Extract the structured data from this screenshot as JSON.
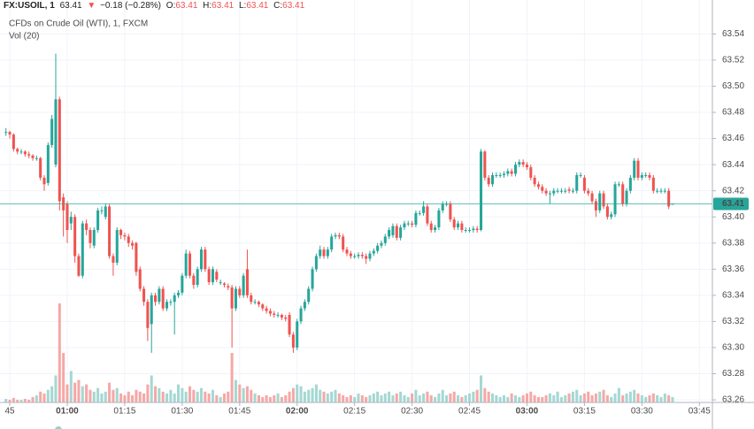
{
  "header": {
    "symbol": "FX:USOIL, 1",
    "price": "63.41",
    "arrow": "▼",
    "change": "−0.18 (−0.28%)",
    "ohlc": [
      {
        "key": "O:",
        "value": "63.41"
      },
      {
        "key": "H:",
        "value": "63.41"
      },
      {
        "key": "L:",
        "value": "63.41"
      },
      {
        "key": "C:",
        "value": "63.41"
      }
    ]
  },
  "chart_data": {
    "type": "candlestick",
    "title": "CFDs on Crude Oil (WTI), 1, FXCM",
    "volume_label": "Vol (20)",
    "up_color": "#26a69a",
    "down_color": "#ef5350",
    "volume_up_color": "#a4d8d2",
    "volume_down_color": "#f5a8a6",
    "grid": true,
    "price_line": 63.41,
    "xlim": [
      42.45,
      228.4
    ],
    "ylim": [
      63.258,
      63.566
    ],
    "xticks": [
      {
        "value": 45,
        "label": "45"
      },
      {
        "value": 60,
        "label": "01:00"
      },
      {
        "value": 75,
        "label": "01:15"
      },
      {
        "value": 90,
        "label": "01:30"
      },
      {
        "value": 105,
        "label": "01:45"
      },
      {
        "value": 120,
        "label": "02:00"
      },
      {
        "value": 135,
        "label": "02:15"
      },
      {
        "value": 150,
        "label": "02:30"
      },
      {
        "value": 165,
        "label": "02:45"
      },
      {
        "value": 180,
        "label": "03:00"
      },
      {
        "value": 195,
        "label": "03:15"
      },
      {
        "value": 210,
        "label": "03:30"
      },
      {
        "value": 225,
        "label": "03:45"
      }
    ],
    "yticks": [
      63.26,
      63.28,
      {
        "value": 63.3,
        "label": "63.30"
      },
      63.32,
      63.34,
      63.36,
      63.38,
      {
        "value": 63.4,
        "label": "63.40"
      },
      63.42,
      63.44,
      63.46,
      63.48,
      {
        "value": 63.5,
        "label": "63.50"
      },
      63.52,
      63.54
    ],
    "x": [
      44,
      45,
      46,
      47,
      48,
      49,
      50,
      51,
      52,
      53,
      54,
      55,
      56,
      57,
      58,
      59,
      60,
      61,
      62,
      63,
      64,
      65,
      66,
      67,
      68,
      69,
      70,
      71,
      72,
      73,
      74,
      75,
      76,
      77,
      78,
      79,
      80,
      81,
      82,
      83,
      84,
      85,
      86,
      87,
      88,
      89,
      90,
      91,
      92,
      93,
      94,
      95,
      96,
      97,
      98,
      99,
      100,
      101,
      102,
      103,
      104,
      105,
      106,
      107,
      108,
      109,
      110,
      111,
      112,
      113,
      114,
      115,
      116,
      117,
      118,
      119,
      120,
      121,
      122,
      123,
      124,
      125,
      126,
      127,
      128,
      129,
      130,
      131,
      132,
      133,
      134,
      135,
      136,
      137,
      138,
      139,
      140,
      141,
      142,
      143,
      144,
      145,
      146,
      147,
      148,
      149,
      150,
      151,
      152,
      153,
      154,
      155,
      156,
      157,
      158,
      159,
      160,
      161,
      162,
      163,
      164,
      165,
      166,
      167,
      168,
      169,
      170,
      171,
      172,
      173,
      174,
      175,
      176,
      177,
      178,
      179,
      180,
      181,
      182,
      183,
      184,
      185,
      186,
      187,
      188,
      189,
      190,
      191,
      192,
      193,
      194,
      195,
      196,
      197,
      198,
      199,
      200,
      201,
      202,
      203,
      204,
      205,
      206,
      207,
      208,
      209,
      210,
      211,
      212,
      213,
      214,
      215,
      216,
      217,
      218
    ],
    "open": [
      63.465,
      63.465,
      63.463,
      63.452,
      63.45,
      63.45,
      63.448,
      63.447,
      63.445,
      63.445,
      63.43,
      63.426,
      63.455,
      63.44,
      63.49,
      63.415,
      63.41,
      63.395,
      63.4,
      63.37,
      63.355,
      63.395,
      63.39,
      63.378,
      63.39,
      63.405,
      63.4,
      63.408,
      63.37,
      63.365,
      63.39,
      63.386,
      63.385,
      63.38,
      63.38,
      63.36,
      63.345,
      63.335,
      63.318,
      63.34,
      63.335,
      63.345,
      63.33,
      63.335,
      63.335,
      63.34,
      63.342,
      63.355,
      63.372,
      63.355,
      63.348,
      63.36,
      63.375,
      63.36,
      63.35,
      63.358,
      63.35,
      63.349,
      63.347,
      63.346,
      63.33,
      63.345,
      63.34,
      63.36,
      63.34,
      63.335,
      63.335,
      63.333,
      63.33,
      63.328,
      63.326,
      63.325,
      63.325,
      63.323,
      63.325,
      63.31,
      63.3,
      63.32,
      63.33,
      63.335,
      63.345,
      63.36,
      63.37,
      63.375,
      63.37,
      63.375,
      63.385,
      63.386,
      63.385,
      63.375,
      63.372,
      63.37,
      63.37,
      63.371,
      63.37,
      63.368,
      63.372,
      63.374,
      63.378,
      63.38,
      63.385,
      63.386,
      63.393,
      63.384,
      63.392,
      63.395,
      63.395,
      63.394,
      63.403,
      63.403,
      63.408,
      63.395,
      63.39,
      63.392,
      63.405,
      63.41,
      63.41,
      63.398,
      63.392,
      63.395,
      63.39,
      63.39,
      63.39,
      63.391,
      63.39,
      63.45,
      63.43,
      63.425,
      63.432,
      63.432,
      63.432,
      63.433,
      63.435,
      63.433,
      63.44,
      63.442,
      63.44,
      63.438,
      63.43,
      63.425,
      63.423,
      63.42,
      63.418,
      63.418,
      63.42,
      63.42,
      63.42,
      63.421,
      63.42,
      63.42,
      63.432,
      63.43,
      63.42,
      63.418,
      63.412,
      63.405,
      63.418,
      63.408,
      63.4,
      63.402,
      63.425,
      63.425,
      63.41,
      63.42,
      63.43,
      63.443,
      63.43,
      63.432,
      63.432,
      63.43,
      63.42,
      63.42,
      63.42,
      63.42,
      63.41
    ],
    "high": [
      63.468,
      63.466,
      63.464,
      63.453,
      63.452,
      63.451,
      63.45,
      63.448,
      63.447,
      63.446,
      63.432,
      63.457,
      63.478,
      63.525,
      63.492,
      63.418,
      63.412,
      63.404,
      63.402,
      63.372,
      63.397,
      63.398,
      63.392,
      63.392,
      63.407,
      63.408,
      63.41,
      63.41,
      63.372,
      63.392,
      63.391,
      63.388,
      63.387,
      63.382,
      63.381,
      63.362,
      63.347,
      63.337,
      63.342,
      63.342,
      63.347,
      63.347,
      63.337,
      63.337,
      63.342,
      63.344,
      63.357,
      63.375,
      63.374,
      63.357,
      63.362,
      63.377,
      63.377,
      63.362,
      63.362,
      63.36,
      63.352,
      63.35,
      63.349,
      63.348,
      63.347,
      63.347,
      63.357,
      63.375,
      63.342,
      63.337,
      63.336,
      63.334,
      63.332,
      63.33,
      63.328,
      63.327,
      63.326,
      63.325,
      63.327,
      63.312,
      63.322,
      63.332,
      63.337,
      63.347,
      63.362,
      63.372,
      63.378,
      63.377,
      63.377,
      63.387,
      63.388,
      63.388,
      63.387,
      63.377,
      63.374,
      63.372,
      63.373,
      63.373,
      63.372,
      63.374,
      63.376,
      63.38,
      63.382,
      63.387,
      63.392,
      63.395,
      63.395,
      63.394,
      63.397,
      63.397,
      63.397,
      63.405,
      63.405,
      63.412,
      63.41,
      63.397,
      63.394,
      63.407,
      63.412,
      63.412,
      63.412,
      63.4,
      63.397,
      63.397,
      63.392,
      63.392,
      63.393,
      63.393,
      63.452,
      63.451,
      63.432,
      63.434,
      63.434,
      63.434,
      63.435,
      63.437,
      63.437,
      63.442,
      63.444,
      63.444,
      63.442,
      63.44,
      63.432,
      63.427,
      63.425,
      63.422,
      63.42,
      63.422,
      63.422,
      63.422,
      63.422,
      63.423,
      63.422,
      63.434,
      63.434,
      63.432,
      63.422,
      63.42,
      63.414,
      63.42,
      63.42,
      63.41,
      63.404,
      63.427,
      63.427,
      63.427,
      63.422,
      63.432,
      63.445,
      63.445,
      63.434,
      63.434,
      63.434,
      63.432,
      63.422,
      63.422,
      63.422,
      63.422,
      63.41
    ],
    "low": [
      63.462,
      63.46,
      63.45,
      63.448,
      63.448,
      63.446,
      63.445,
      63.443,
      63.443,
      63.428,
      63.42,
      63.424,
      63.453,
      63.438,
      63.405,
      63.385,
      63.38,
      63.39,
      63.365,
      63.354,
      63.353,
      63.386,
      63.376,
      63.376,
      63.388,
      63.402,
      63.398,
      63.368,
      63.355,
      63.363,
      63.383,
      63.382,
      63.377,
      63.375,
      63.355,
      63.343,
      63.332,
      63.305,
      63.296,
      63.332,
      63.333,
      63.328,
      63.328,
      63.332,
      63.31,
      63.338,
      63.34,
      63.353,
      63.353,
      63.345,
      63.346,
      63.358,
      63.358,
      63.348,
      63.348,
      63.35,
      63.348,
      63.346,
      63.344,
      63.3,
      63.328,
      63.338,
      63.338,
      63.338,
      63.333,
      63.333,
      63.331,
      63.328,
      63.326,
      63.324,
      63.323,
      63.323,
      63.321,
      63.32,
      63.308,
      63.296,
      63.298,
      63.318,
      63.328,
      63.333,
      63.343,
      63.358,
      63.368,
      63.368,
      63.368,
      63.373,
      63.383,
      63.383,
      63.373,
      63.37,
      63.368,
      63.368,
      63.368,
      63.368,
      63.364,
      63.366,
      63.37,
      63.372,
      63.376,
      63.378,
      63.383,
      63.384,
      63.382,
      63.382,
      63.39,
      63.393,
      63.392,
      63.392,
      63.401,
      63.401,
      63.393,
      63.388,
      63.388,
      63.39,
      63.403,
      63.408,
      63.396,
      63.39,
      63.39,
      63.388,
      63.388,
      63.388,
      63.388,
      63.388,
      63.389,
      63.428,
      63.423,
      63.423,
      63.43,
      63.43,
      63.43,
      63.431,
      63.431,
      63.431,
      63.438,
      63.438,
      63.436,
      63.428,
      63.423,
      63.421,
      63.418,
      63.416,
      63.41,
      63.416,
      63.418,
      63.418,
      63.418,
      63.418,
      63.418,
      63.418,
      63.43,
      63.418,
      63.416,
      63.41,
      63.4,
      63.403,
      63.406,
      63.398,
      63.398,
      63.4,
      63.423,
      63.408,
      63.408,
      63.418,
      63.428,
      63.428,
      63.428,
      63.43,
      63.428,
      63.418,
      63.418,
      63.418,
      63.418,
      63.406,
      63.41
    ],
    "close": [
      63.465,
      63.463,
      63.452,
      63.45,
      63.45,
      63.448,
      63.447,
      63.445,
      63.445,
      63.43,
      63.425,
      63.455,
      63.475,
      63.49,
      63.412,
      63.405,
      63.39,
      63.4,
      63.37,
      63.355,
      63.395,
      63.39,
      63.38,
      63.39,
      63.405,
      63.405,
      63.408,
      63.37,
      63.365,
      63.39,
      63.386,
      63.385,
      63.38,
      63.378,
      63.358,
      63.345,
      63.335,
      63.315,
      63.34,
      63.335,
      63.345,
      63.33,
      63.335,
      63.335,
      63.34,
      63.342,
      63.355,
      63.372,
      63.355,
      63.348,
      63.36,
      63.375,
      63.36,
      63.35,
      63.36,
      63.352,
      63.35,
      63.348,
      63.346,
      63.33,
      63.345,
      63.34,
      63.355,
      63.34,
      63.335,
      63.335,
      63.333,
      63.33,
      63.328,
      63.326,
      63.325,
      63.325,
      63.323,
      63.322,
      63.31,
      63.3,
      63.32,
      63.33,
      63.335,
      63.345,
      63.36,
      63.37,
      63.375,
      63.37,
      63.375,
      63.385,
      63.386,
      63.385,
      63.375,
      63.372,
      63.37,
      63.37,
      63.371,
      63.37,
      63.368,
      63.372,
      63.374,
      63.378,
      63.38,
      63.385,
      63.39,
      63.393,
      63.384,
      63.392,
      63.395,
      63.395,
      63.394,
      63.403,
      63.403,
      63.408,
      63.395,
      63.39,
      63.392,
      63.405,
      63.41,
      63.41,
      63.398,
      63.392,
      63.395,
      63.39,
      63.39,
      63.39,
      63.391,
      63.39,
      63.45,
      63.43,
      63.425,
      63.432,
      63.432,
      63.432,
      63.433,
      63.435,
      63.433,
      63.44,
      63.442,
      63.44,
      63.438,
      63.43,
      63.425,
      63.423,
      63.42,
      63.418,
      63.418,
      63.42,
      63.42,
      63.42,
      63.42,
      63.42,
      63.42,
      63.432,
      63.432,
      63.42,
      63.418,
      63.412,
      63.405,
      63.418,
      63.408,
      63.4,
      63.402,
      63.425,
      63.425,
      63.41,
      63.42,
      63.43,
      63.443,
      63.43,
      63.432,
      63.432,
      63.43,
      63.42,
      63.42,
      63.42,
      63.42,
      63.408,
      63.41
    ],
    "volume": [
      4,
      3,
      5,
      3,
      3,
      4,
      3,
      6,
      8,
      12,
      10,
      14,
      18,
      30,
      110,
      55,
      20,
      35,
      22,
      25,
      18,
      20,
      14,
      12,
      16,
      10,
      12,
      22,
      14,
      16,
      10,
      8,
      12,
      8,
      14,
      12,
      10,
      20,
      30,
      18,
      16,
      12,
      10,
      14,
      10,
      20,
      16,
      12,
      18,
      14,
      12,
      16,
      12,
      10,
      14,
      8,
      6,
      10,
      12,
      55,
      25,
      20,
      16,
      18,
      14,
      10,
      8,
      6,
      8,
      6,
      8,
      10,
      6,
      8,
      12,
      16,
      20,
      18,
      12,
      14,
      16,
      20,
      14,
      12,
      10,
      12,
      14,
      10,
      8,
      6,
      8,
      6,
      10,
      8,
      6,
      8,
      10,
      12,
      8,
      10,
      12,
      8,
      10,
      12,
      8,
      6,
      10,
      14,
      8,
      10,
      12,
      8,
      6,
      10,
      14,
      8,
      10,
      12,
      8,
      6,
      8,
      10,
      12,
      14,
      30,
      16,
      12,
      10,
      8,
      6,
      8,
      6,
      10,
      8,
      6,
      8,
      10,
      12,
      8,
      6,
      6,
      8,
      10,
      8,
      12,
      6,
      8,
      10,
      12,
      14,
      8,
      10,
      12,
      8,
      10,
      12,
      14,
      8,
      6,
      10,
      16,
      8,
      10,
      12,
      14,
      10,
      8,
      6,
      8,
      10,
      8,
      6,
      10,
      8,
      6
    ]
  }
}
